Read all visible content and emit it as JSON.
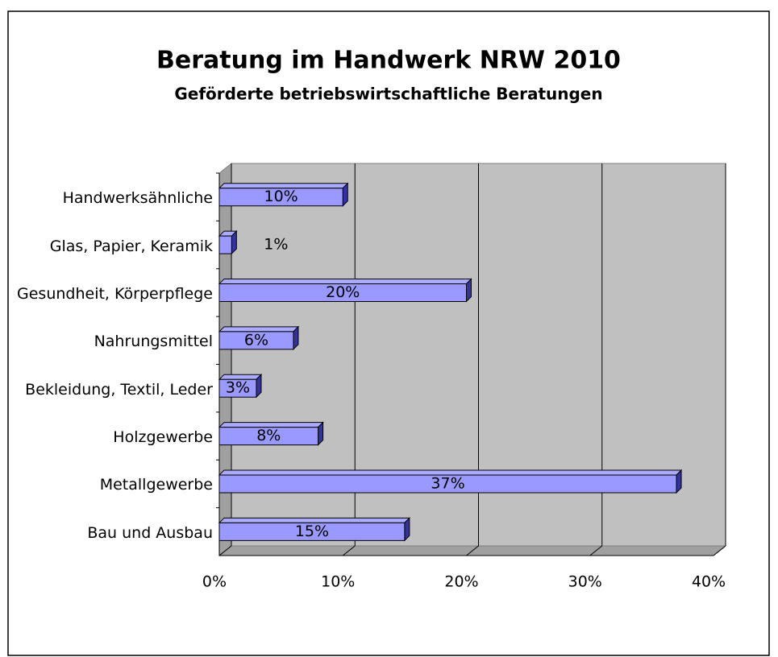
{
  "chart_data": {
    "type": "bar",
    "orientation": "horizontal",
    "title": "Beratung im Handwerk NRW 2010",
    "subtitle": "Geförderte betriebswirtschaftliche Beratungen",
    "categories": [
      "Handwerksähnliche",
      "Glas, Papier, Keramik",
      "Gesundheit, Körperpflege",
      "Nahrungsmittel",
      "Bekleidung, Textil, Leder",
      "Holzgewerbe",
      "Metallgewerbe",
      "Bau und Ausbau"
    ],
    "values": [
      10,
      1,
      20,
      6,
      3,
      8,
      37,
      15
    ],
    "value_labels": [
      "10%",
      "1%",
      "20%",
      "6%",
      "3%",
      "8%",
      "37%",
      "15%"
    ],
    "color": "#9999ff",
    "xlim": [
      0,
      40
    ],
    "xticks": [
      {
        "value": 0,
        "label": "0%"
      },
      {
        "value": 10,
        "label": "10%"
      },
      {
        "value": 20,
        "label": "20%"
      },
      {
        "value": 30,
        "label": "30%"
      },
      {
        "value": 40,
        "label": "40%"
      }
    ],
    "grid": true
  }
}
